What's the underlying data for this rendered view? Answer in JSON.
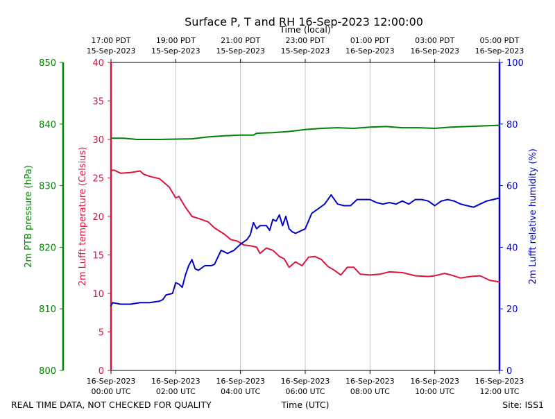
{
  "chart_data": {
    "type": "line",
    "title": "Surface P, T and RH 16-Sep-2023 12:00:00",
    "top_axis": {
      "label": "Time (local)",
      "ticks": [
        {
          "hour": 0,
          "line1": "17:00 PDT",
          "line2": "15-Sep-2023"
        },
        {
          "hour": 2,
          "line1": "19:00 PDT",
          "line2": "15-Sep-2023"
        },
        {
          "hour": 4,
          "line1": "21:00 PDT",
          "line2": "15-Sep-2023"
        },
        {
          "hour": 6,
          "line1": "23:00 PDT",
          "line2": "15-Sep-2023"
        },
        {
          "hour": 8,
          "line1": "01:00 PDT",
          "line2": "16-Sep-2023"
        },
        {
          "hour": 10,
          "line1": "03:00 PDT",
          "line2": "16-Sep-2023"
        },
        {
          "hour": 12,
          "line1": "05:00 PDT",
          "line2": "16-Sep-2023"
        }
      ]
    },
    "bottom_axis": {
      "label": "Time (UTC)",
      "xlim": [
        0,
        12
      ],
      "ticks": [
        {
          "hour": 0,
          "line1": "16-Sep-2023",
          "line2": "00:00 UTC"
        },
        {
          "hour": 2,
          "line1": "16-Sep-2023",
          "line2": "02:00 UTC"
        },
        {
          "hour": 4,
          "line1": "16-Sep-2023",
          "line2": "04:00 UTC"
        },
        {
          "hour": 6,
          "line1": "16-Sep-2023",
          "line2": "06:00 UTC"
        },
        {
          "hour": 8,
          "line1": "16-Sep-2023",
          "line2": "08:00 UTC"
        },
        {
          "hour": 10,
          "line1": "16-Sep-2023",
          "line2": "10:00 UTC"
        },
        {
          "hour": 12,
          "line1": "16-Sep-2023",
          "line2": "12:00 UTC"
        }
      ]
    },
    "pressure_axis": {
      "label": "2m PTB pressure (hPa)",
      "ylim": [
        800,
        850
      ],
      "ticks": [
        "800",
        "810",
        "820",
        "830",
        "840",
        "850"
      ],
      "color": "#008000"
    },
    "temperature_axis": {
      "label": "2m Lufft temperature (Celsius)",
      "ylim": [
        0,
        40
      ],
      "ticks": [
        "0",
        "5",
        "10",
        "15",
        "20",
        "25",
        "30",
        "35",
        "40"
      ],
      "color": "#dc143c"
    },
    "humidity_axis": {
      "label": "2m Lufft relative humidity (%)",
      "ylim": [
        0,
        100
      ],
      "ticks": [
        "0",
        "20",
        "40",
        "60",
        "80",
        "100"
      ],
      "color": "#0000cd"
    },
    "grid": "vertical",
    "series": [
      {
        "name": "pressure",
        "axis": "pressure",
        "color": "#008000",
        "x": [
          0,
          0.4,
          0.8,
          1.5,
          2.5,
          3.0,
          3.5,
          4.0,
          4.4,
          4.5,
          5.0,
          5.5,
          6.0,
          6.5,
          7.0,
          7.5,
          8.0,
          8.5,
          9.0,
          9.5,
          10.0,
          10.5,
          11.0,
          11.5,
          12.0
        ],
        "y": [
          837.7,
          837.7,
          837.5,
          837.5,
          837.6,
          837.9,
          838.1,
          838.2,
          838.2,
          838.5,
          838.6,
          838.8,
          839.1,
          839.3,
          839.4,
          839.3,
          839.5,
          839.6,
          839.4,
          839.4,
          839.3,
          839.5,
          839.6,
          839.7,
          839.8
        ]
      },
      {
        "name": "temperature",
        "axis": "temperature",
        "color": "#dc143c",
        "x": [
          0,
          0.1,
          0.3,
          0.6,
          0.9,
          1.0,
          1.2,
          1.5,
          1.8,
          2.0,
          2.1,
          2.3,
          2.5,
          2.8,
          3.0,
          3.2,
          3.5,
          3.7,
          3.9,
          4.1,
          4.3,
          4.5,
          4.6,
          4.8,
          5.0,
          5.2,
          5.35,
          5.5,
          5.7,
          5.9,
          6.1,
          6.3,
          6.5,
          6.7,
          6.9,
          7.1,
          7.3,
          7.5,
          7.7,
          8.0,
          8.3,
          8.6,
          9.0,
          9.4,
          9.8,
          10.0,
          10.3,
          10.5,
          10.8,
          11.1,
          11.4,
          11.7,
          12.0
        ],
        "y": [
          26,
          26,
          25.6,
          25.7,
          25.9,
          25.5,
          25.2,
          24.9,
          23.8,
          22.4,
          22.6,
          21.2,
          20.0,
          19.6,
          19.3,
          18.5,
          17.7,
          17.0,
          16.8,
          16.3,
          16.2,
          16.0,
          15.2,
          15.9,
          15.6,
          14.8,
          14.5,
          13.4,
          14.1,
          13.6,
          14.7,
          14.8,
          14.4,
          13.5,
          13.0,
          12.4,
          13.4,
          13.4,
          12.5,
          12.4,
          12.5,
          12.8,
          12.7,
          12.3,
          12.2,
          12.3,
          12.6,
          12.4,
          12.0,
          12.2,
          12.3,
          11.7,
          11.5
        ]
      },
      {
        "name": "humidity",
        "axis": "humidity",
        "color": "#0000cd",
        "x": [
          0,
          0.05,
          0.3,
          0.6,
          0.9,
          1.2,
          1.5,
          1.6,
          1.7,
          1.9,
          2.0,
          2.1,
          2.2,
          2.3,
          2.4,
          2.5,
          2.6,
          2.7,
          2.9,
          3.1,
          3.2,
          3.4,
          3.6,
          3.8,
          4.0,
          4.2,
          4.3,
          4.4,
          4.5,
          4.6,
          4.8,
          4.9,
          5.0,
          5.1,
          5.2,
          5.3,
          5.4,
          5.5,
          5.6,
          5.7,
          5.8,
          6.0,
          6.2,
          6.4,
          6.6,
          6.8,
          7.0,
          7.2,
          7.4,
          7.6,
          7.8,
          8.0,
          8.2,
          8.4,
          8.6,
          8.8,
          9.0,
          9.2,
          9.4,
          9.6,
          9.8,
          10.0,
          10.2,
          10.4,
          10.6,
          10.8,
          11.0,
          11.2,
          11.4,
          11.6,
          11.8,
          12.0
        ],
        "y": [
          21,
          22,
          21.5,
          21.5,
          22,
          22,
          22.5,
          23,
          24.5,
          25,
          28.5,
          28,
          27,
          31,
          34,
          36,
          33,
          32.5,
          34,
          34,
          34.5,
          39,
          38,
          39,
          41,
          42.5,
          44,
          48,
          46,
          47,
          47,
          45.5,
          49,
          48.5,
          50.5,
          47,
          50,
          46,
          45,
          44.5,
          45,
          46,
          51,
          52.5,
          54,
          57,
          54,
          53.5,
          53.5,
          55.5,
          55.5,
          55.5,
          54.5,
          54,
          54.5,
          54,
          55,
          54,
          55.5,
          55.5,
          55,
          53.5,
          55,
          55.5,
          55,
          54,
          53.5,
          53,
          54,
          55,
          55.5,
          56
        ]
      }
    ],
    "footer_left": "REAL TIME DATA, NOT CHECKED FOR QUALITY",
    "footer_right": "Site: ISS1"
  }
}
